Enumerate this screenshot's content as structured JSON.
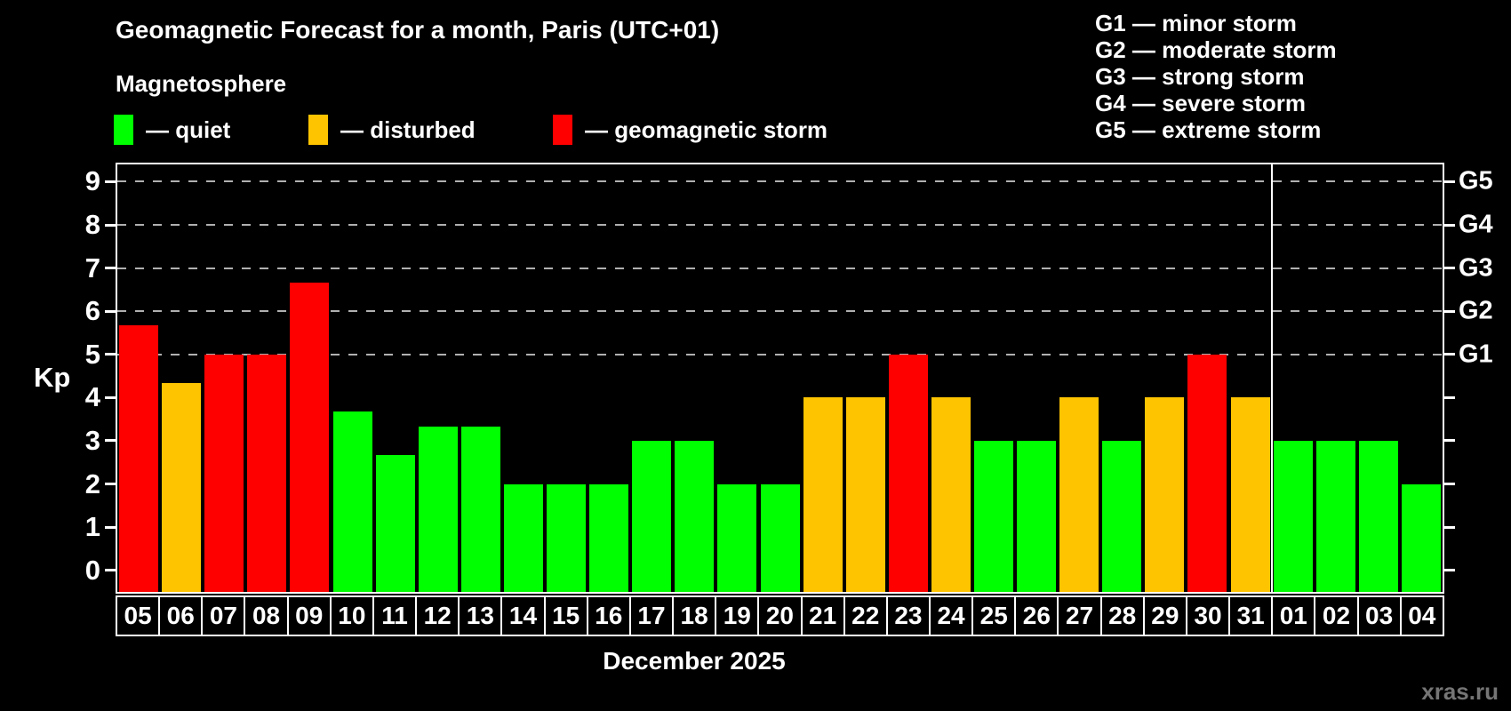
{
  "title": "Geomagnetic Forecast for a month, Paris (UTC+01)",
  "subtitle": "Magnetosphere",
  "legend": {
    "quiet": {
      "label": "— quiet",
      "color": "#00ff00"
    },
    "disturbed": {
      "label": "— disturbed",
      "color": "#ffc400"
    },
    "storm": {
      "label": "— geomagnetic storm",
      "color": "#ff0000"
    }
  },
  "g_legend": [
    "G1 — minor storm",
    "G2 — moderate storm",
    "G3 — strong storm",
    "G4 — severe storm",
    "G5 — extreme storm"
  ],
  "watermark": "xras.ru",
  "chart_data": {
    "type": "bar",
    "title": "Geomagnetic Forecast for a month, Paris (UTC+01)",
    "xlabel": "December 2025",
    "ylabel": "Kp",
    "ylim": [
      -0.5,
      9.4
    ],
    "yticks": [
      0,
      1,
      2,
      3,
      4,
      5,
      6,
      7,
      8,
      9
    ],
    "gridlines": [
      5,
      6,
      7,
      8,
      9
    ],
    "grid_style": "dashed",
    "legend_position": "top",
    "right_axis_labels": [
      {
        "value": 9,
        "label": "G5"
      },
      {
        "value": 8,
        "label": "G4"
      },
      {
        "value": 7,
        "label": "G3"
      },
      {
        "value": 6,
        "label": "G2"
      },
      {
        "value": 5,
        "label": "G1"
      }
    ],
    "categories": [
      "05",
      "06",
      "07",
      "08",
      "09",
      "10",
      "11",
      "12",
      "13",
      "14",
      "15",
      "16",
      "17",
      "18",
      "19",
      "20",
      "21",
      "22",
      "23",
      "24",
      "25",
      "26",
      "27",
      "28",
      "29",
      "30",
      "31",
      "01",
      "02",
      "03",
      "04"
    ],
    "values": [
      5.67,
      4.33,
      5,
      5,
      6.67,
      3.67,
      2.67,
      3.33,
      3.33,
      2,
      2,
      2,
      3,
      3,
      2,
      2,
      4,
      4,
      5,
      4,
      3,
      3,
      4,
      3,
      4,
      5,
      4,
      3,
      3,
      3,
      2
    ],
    "states": [
      "storm",
      "disturbed",
      "storm",
      "storm",
      "storm",
      "quiet",
      "quiet",
      "quiet",
      "quiet",
      "quiet",
      "quiet",
      "quiet",
      "quiet",
      "quiet",
      "quiet",
      "quiet",
      "disturbed",
      "disturbed",
      "storm",
      "disturbed",
      "quiet",
      "quiet",
      "disturbed",
      "quiet",
      "disturbed",
      "storm",
      "disturbed",
      "quiet",
      "quiet",
      "quiet",
      "quiet"
    ],
    "colors_by_state": {
      "quiet": "#00ff00",
      "disturbed": "#ffc400",
      "storm": "#ff0000"
    },
    "month_separator_after_index": 26
  }
}
